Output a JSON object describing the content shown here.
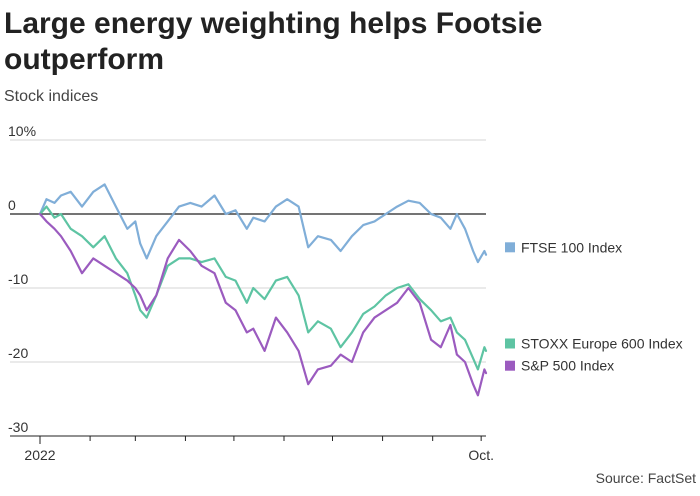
{
  "title": "Large energy weighting helps Footsie outperform",
  "subtitle": "Stock indices",
  "source": "Source: FactSet",
  "chart_data": {
    "type": "line",
    "x_tick_labels": [
      "2022",
      "Oct."
    ],
    "x_range": [
      "2022-01-01",
      "2022-10-04"
    ],
    "ylim": [
      -30,
      10
    ],
    "y_ticks": [
      {
        "value": 10,
        "label": "10%"
      },
      {
        "value": 0,
        "label": "0"
      },
      {
        "value": -10,
        "label": "-10"
      },
      {
        "value": -20,
        "label": "-20"
      },
      {
        "value": -30,
        "label": "-30"
      }
    ],
    "grid": "horizontal",
    "legend": "right",
    "series": [
      {
        "name": "FTSE 100 Index",
        "color": "#80aed8",
        "points": [
          [
            "2022-01-01",
            0
          ],
          [
            "2022-01-05",
            2
          ],
          [
            "2022-01-10",
            1.5
          ],
          [
            "2022-01-14",
            2.5
          ],
          [
            "2022-01-20",
            3
          ],
          [
            "2022-01-27",
            1
          ],
          [
            "2022-02-03",
            3
          ],
          [
            "2022-02-10",
            4
          ],
          [
            "2022-02-17",
            1
          ],
          [
            "2022-02-24",
            -2
          ],
          [
            "2022-03-01",
            -1
          ],
          [
            "2022-03-04",
            -4
          ],
          [
            "2022-03-08",
            -6
          ],
          [
            "2022-03-14",
            -3
          ],
          [
            "2022-03-21",
            -1
          ],
          [
            "2022-03-28",
            1
          ],
          [
            "2022-04-04",
            1.5
          ],
          [
            "2022-04-11",
            1
          ],
          [
            "2022-04-19",
            2.5
          ],
          [
            "2022-04-26",
            0
          ],
          [
            "2022-05-02",
            0.5
          ],
          [
            "2022-05-09",
            -2
          ],
          [
            "2022-05-13",
            -0.5
          ],
          [
            "2022-05-20",
            -1
          ],
          [
            "2022-05-27",
            1
          ],
          [
            "2022-06-03",
            2
          ],
          [
            "2022-06-10",
            1
          ],
          [
            "2022-06-16",
            -4.5
          ],
          [
            "2022-06-22",
            -3
          ],
          [
            "2022-06-30",
            -3.5
          ],
          [
            "2022-07-06",
            -5
          ],
          [
            "2022-07-13",
            -3
          ],
          [
            "2022-07-20",
            -1.5
          ],
          [
            "2022-07-27",
            -1
          ],
          [
            "2022-08-03",
            0
          ],
          [
            "2022-08-10",
            1
          ],
          [
            "2022-08-17",
            1.8
          ],
          [
            "2022-08-24",
            1.5
          ],
          [
            "2022-08-31",
            0
          ],
          [
            "2022-09-06",
            -0.5
          ],
          [
            "2022-09-12",
            -2
          ],
          [
            "2022-09-16",
            0
          ],
          [
            "2022-09-21",
            -2
          ],
          [
            "2022-09-26",
            -5
          ],
          [
            "2022-09-29",
            -6.5
          ],
          [
            "2022-10-03",
            -5
          ],
          [
            "2022-10-04",
            -5.5
          ]
        ]
      },
      {
        "name": "STOXX Europe 600 Index",
        "color": "#5ec4a3",
        "points": [
          [
            "2022-01-01",
            0
          ],
          [
            "2022-01-05",
            1
          ],
          [
            "2022-01-10",
            -0.5
          ],
          [
            "2022-01-14",
            0
          ],
          [
            "2022-01-20",
            -2
          ],
          [
            "2022-01-27",
            -3
          ],
          [
            "2022-02-03",
            -4.5
          ],
          [
            "2022-02-10",
            -3
          ],
          [
            "2022-02-17",
            -6
          ],
          [
            "2022-02-24",
            -8
          ],
          [
            "2022-03-01",
            -11
          ],
          [
            "2022-03-04",
            -13
          ],
          [
            "2022-03-08",
            -14
          ],
          [
            "2022-03-14",
            -11
          ],
          [
            "2022-03-21",
            -7
          ],
          [
            "2022-03-28",
            -6
          ],
          [
            "2022-04-04",
            -6
          ],
          [
            "2022-04-11",
            -6.5
          ],
          [
            "2022-04-19",
            -6
          ],
          [
            "2022-04-26",
            -8.5
          ],
          [
            "2022-05-02",
            -9
          ],
          [
            "2022-05-09",
            -12
          ],
          [
            "2022-05-13",
            -10
          ],
          [
            "2022-05-20",
            -11.5
          ],
          [
            "2022-05-27",
            -9
          ],
          [
            "2022-06-03",
            -8.5
          ],
          [
            "2022-06-10",
            -11
          ],
          [
            "2022-06-16",
            -16
          ],
          [
            "2022-06-22",
            -14.5
          ],
          [
            "2022-06-30",
            -15.5
          ],
          [
            "2022-07-06",
            -18
          ],
          [
            "2022-07-13",
            -16
          ],
          [
            "2022-07-20",
            -13.5
          ],
          [
            "2022-07-27",
            -12.5
          ],
          [
            "2022-08-03",
            -11
          ],
          [
            "2022-08-10",
            -10
          ],
          [
            "2022-08-17",
            -9.5
          ],
          [
            "2022-08-24",
            -11.5
          ],
          [
            "2022-08-31",
            -13
          ],
          [
            "2022-09-06",
            -14.5
          ],
          [
            "2022-09-12",
            -14
          ],
          [
            "2022-09-16",
            -16
          ],
          [
            "2022-09-21",
            -17
          ],
          [
            "2022-09-26",
            -19.5
          ],
          [
            "2022-09-29",
            -21
          ],
          [
            "2022-10-03",
            -18
          ],
          [
            "2022-10-04",
            -18.5
          ]
        ]
      },
      {
        "name": "S&P 500 Index",
        "color": "#9b5bbf",
        "points": [
          [
            "2022-01-01",
            0
          ],
          [
            "2022-01-05",
            -1
          ],
          [
            "2022-01-10",
            -2
          ],
          [
            "2022-01-14",
            -3
          ],
          [
            "2022-01-20",
            -5
          ],
          [
            "2022-01-27",
            -8
          ],
          [
            "2022-02-03",
            -6
          ],
          [
            "2022-02-10",
            -7
          ],
          [
            "2022-02-17",
            -8
          ],
          [
            "2022-02-24",
            -9
          ],
          [
            "2022-03-01",
            -10
          ],
          [
            "2022-03-04",
            -11
          ],
          [
            "2022-03-08",
            -13
          ],
          [
            "2022-03-14",
            -11
          ],
          [
            "2022-03-21",
            -6
          ],
          [
            "2022-03-28",
            -3.5
          ],
          [
            "2022-04-04",
            -5
          ],
          [
            "2022-04-11",
            -7
          ],
          [
            "2022-04-19",
            -8
          ],
          [
            "2022-04-26",
            -12
          ],
          [
            "2022-05-02",
            -13
          ],
          [
            "2022-05-09",
            -16
          ],
          [
            "2022-05-13",
            -15.5
          ],
          [
            "2022-05-20",
            -18.5
          ],
          [
            "2022-05-27",
            -14
          ],
          [
            "2022-06-03",
            -16
          ],
          [
            "2022-06-10",
            -18.5
          ],
          [
            "2022-06-16",
            -23
          ],
          [
            "2022-06-22",
            -21
          ],
          [
            "2022-06-30",
            -20.5
          ],
          [
            "2022-07-06",
            -19
          ],
          [
            "2022-07-13",
            -20
          ],
          [
            "2022-07-20",
            -16
          ],
          [
            "2022-07-27",
            -14
          ],
          [
            "2022-08-03",
            -13
          ],
          [
            "2022-08-10",
            -12
          ],
          [
            "2022-08-17",
            -10
          ],
          [
            "2022-08-24",
            -12
          ],
          [
            "2022-08-31",
            -17
          ],
          [
            "2022-09-06",
            -18
          ],
          [
            "2022-09-12",
            -15
          ],
          [
            "2022-09-16",
            -19
          ],
          [
            "2022-09-21",
            -20
          ],
          [
            "2022-09-26",
            -23
          ],
          [
            "2022-09-29",
            -24.5
          ],
          [
            "2022-10-03",
            -21
          ],
          [
            "2022-10-04",
            -21.5
          ]
        ]
      }
    ]
  }
}
